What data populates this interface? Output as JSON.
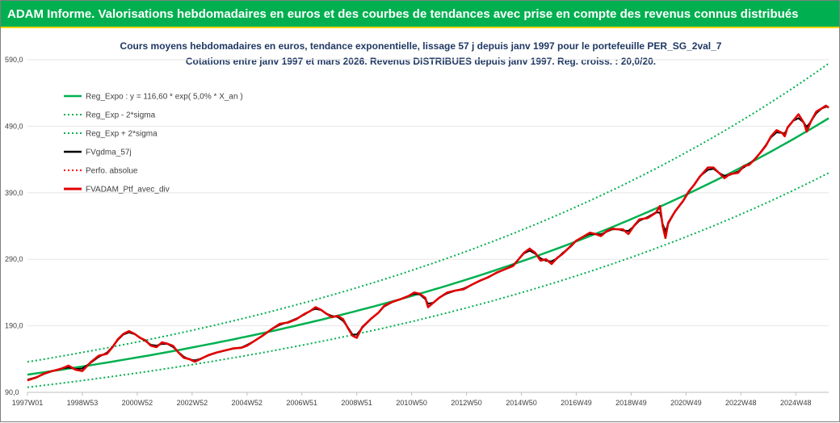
{
  "banner": "ADAM Informe. Valorisations hebdomadaires en euros et des courbes de tendances avec prise en compte des revenus connus distribués",
  "chart_data": {
    "type": "line",
    "title": "Cours moyens hebdomadaires en euros, tendance exponentielle, lissage 57 j depuis janv 1997 pour le portefeuille PER_SG_2val_7",
    "subtitle": "Cotations entre janv 1997 et mars 2026. Revenus DISTRIBUES depuis janv 1997. Reg. croiss. : 20,0/20.",
    "ylim": [
      90,
      590
    ],
    "yticks": [
      "90,0",
      "190,0",
      "290,0",
      "390,0",
      "490,0",
      "590,0"
    ],
    "xlim": [
      1997.0,
      2026.2
    ],
    "xticks": [
      {
        "label": "1997W01",
        "x": 1997.0
      },
      {
        "label": "1998W53",
        "x": 1999.0
      },
      {
        "label": "2000W52",
        "x": 2001.0
      },
      {
        "label": "2002W52",
        "x": 2003.0
      },
      {
        "label": "2004W52",
        "x": 2005.0
      },
      {
        "label": "2006W51",
        "x": 2007.0
      },
      {
        "label": "2008W51",
        "x": 2009.0
      },
      {
        "label": "2010W50",
        "x": 2011.0
      },
      {
        "label": "2012W50",
        "x": 2013.0
      },
      {
        "label": "2014W50",
        "x": 2015.0
      },
      {
        "label": "2016W49",
        "x": 2017.0
      },
      {
        "label": "2018W49",
        "x": 2019.0
      },
      {
        "label": "2020W49",
        "x": 2021.0
      },
      {
        "label": "2022W48",
        "x": 2023.0
      },
      {
        "label": "2024W48",
        "x": 2025.0
      }
    ],
    "legend_position": "top-left",
    "series": [
      {
        "name": "Reg_Expo : y = 116,60 * exp( 5,0% * X_an )",
        "color": "#00b050",
        "style": "solid",
        "a": 116.6,
        "r": 0.05
      },
      {
        "name": "Reg_Exp - 2*sigma",
        "color": "#00b050",
        "style": "dotted",
        "a": 97.5,
        "r": 0.05
      },
      {
        "name": "Reg_Exp + 2*sigma",
        "color": "#00b050",
        "style": "dotted",
        "a": 135.7,
        "r": 0.05
      },
      {
        "name": "FVgdma_57j",
        "color": "#000000",
        "style": "solid"
      },
      {
        "name": "Perfo. absolue",
        "color": "#ff0000",
        "style": "dotted"
      },
      {
        "name": "FVADAM_Ptf_avec_div",
        "color": "#e00000",
        "style": "solid",
        "points": [
          [
            1997.0,
            108
          ],
          [
            1997.3,
            112
          ],
          [
            1997.6,
            118
          ],
          [
            1997.9,
            122
          ],
          [
            1998.2,
            125
          ],
          [
            1998.5,
            130
          ],
          [
            1998.75,
            124
          ],
          [
            1999.0,
            122
          ],
          [
            1999.3,
            135
          ],
          [
            1999.6,
            145
          ],
          [
            1999.9,
            148
          ],
          [
            2000.1,
            158
          ],
          [
            2000.3,
            170
          ],
          [
            2000.5,
            178
          ],
          [
            2000.7,
            182
          ],
          [
            2000.9,
            178
          ],
          [
            2001.1,
            172
          ],
          [
            2001.3,
            168
          ],
          [
            2001.5,
            160
          ],
          [
            2001.7,
            158
          ],
          [
            2001.9,
            165
          ],
          [
            2002.1,
            163
          ],
          [
            2002.3,
            160
          ],
          [
            2002.5,
            150
          ],
          [
            2002.7,
            142
          ],
          [
            2002.9,
            140
          ],
          [
            2003.1,
            136
          ],
          [
            2003.3,
            140
          ],
          [
            2003.6,
            146
          ],
          [
            2003.9,
            150
          ],
          [
            2004.2,
            153
          ],
          [
            2004.5,
            156
          ],
          [
            2004.8,
            157
          ],
          [
            2005.0,
            160
          ],
          [
            2005.3,
            168
          ],
          [
            2005.6,
            176
          ],
          [
            2005.9,
            185
          ],
          [
            2006.2,
            193
          ],
          [
            2006.5,
            195
          ],
          [
            2006.8,
            200
          ],
          [
            2007.1,
            208
          ],
          [
            2007.3,
            212
          ],
          [
            2007.5,
            218
          ],
          [
            2007.7,
            214
          ],
          [
            2007.9,
            208
          ],
          [
            2008.1,
            203
          ],
          [
            2008.3,
            205
          ],
          [
            2008.5,
            200
          ],
          [
            2008.7,
            185
          ],
          [
            2008.85,
            175
          ],
          [
            2009.0,
            172
          ],
          [
            2009.2,
            188
          ],
          [
            2009.5,
            200
          ],
          [
            2009.8,
            210
          ],
          [
            2010.0,
            220
          ],
          [
            2010.3,
            226
          ],
          [
            2010.6,
            230
          ],
          [
            2010.9,
            235
          ],
          [
            2011.1,
            240
          ],
          [
            2011.3,
            238
          ],
          [
            2011.5,
            232
          ],
          [
            2011.6,
            218
          ],
          [
            2011.8,
            225
          ],
          [
            2012.0,
            232
          ],
          [
            2012.3,
            240
          ],
          [
            2012.6,
            243
          ],
          [
            2012.9,
            245
          ],
          [
            2013.2,
            252
          ],
          [
            2013.5,
            258
          ],
          [
            2013.8,
            263
          ],
          [
            2014.1,
            270
          ],
          [
            2014.4,
            275
          ],
          [
            2014.7,
            280
          ],
          [
            2014.9,
            290
          ],
          [
            2015.1,
            300
          ],
          [
            2015.3,
            306
          ],
          [
            2015.5,
            300
          ],
          [
            2015.7,
            288
          ],
          [
            2015.9,
            290
          ],
          [
            2016.1,
            283
          ],
          [
            2016.3,
            292
          ],
          [
            2016.5,
            298
          ],
          [
            2016.8,
            310
          ],
          [
            2017.0,
            318
          ],
          [
            2017.3,
            325
          ],
          [
            2017.5,
            330
          ],
          [
            2017.7,
            328
          ],
          [
            2017.9,
            325
          ],
          [
            2018.1,
            332
          ],
          [
            2018.3,
            336
          ],
          [
            2018.5,
            335
          ],
          [
            2018.7,
            335
          ],
          [
            2018.9,
            328
          ],
          [
            2019.1,
            340
          ],
          [
            2019.3,
            350
          ],
          [
            2019.6,
            352
          ],
          [
            2019.9,
            360
          ],
          [
            2020.05,
            370
          ],
          [
            2020.15,
            340
          ],
          [
            2020.25,
            322
          ],
          [
            2020.35,
            345
          ],
          [
            2020.6,
            362
          ],
          [
            2020.9,
            378
          ],
          [
            2021.1,
            392
          ],
          [
            2021.3,
            402
          ],
          [
            2021.5,
            414
          ],
          [
            2021.8,
            428
          ],
          [
            2022.0,
            428
          ],
          [
            2022.2,
            420
          ],
          [
            2022.4,
            412
          ],
          [
            2022.6,
            418
          ],
          [
            2022.9,
            420
          ],
          [
            2023.1,
            430
          ],
          [
            2023.3,
            432
          ],
          [
            2023.5,
            440
          ],
          [
            2023.7,
            450
          ],
          [
            2023.9,
            460
          ],
          [
            2024.1,
            475
          ],
          [
            2024.3,
            484
          ],
          [
            2024.5,
            480
          ],
          [
            2024.6,
            475
          ],
          [
            2024.7,
            488
          ],
          [
            2024.9,
            498
          ],
          [
            2025.1,
            508
          ],
          [
            2025.3,
            495
          ],
          [
            2025.4,
            482
          ],
          [
            2025.55,
            497
          ],
          [
            2025.75,
            512
          ],
          [
            2025.95,
            517
          ],
          [
            2026.1,
            521
          ],
          [
            2026.2,
            518
          ]
        ]
      }
    ]
  }
}
